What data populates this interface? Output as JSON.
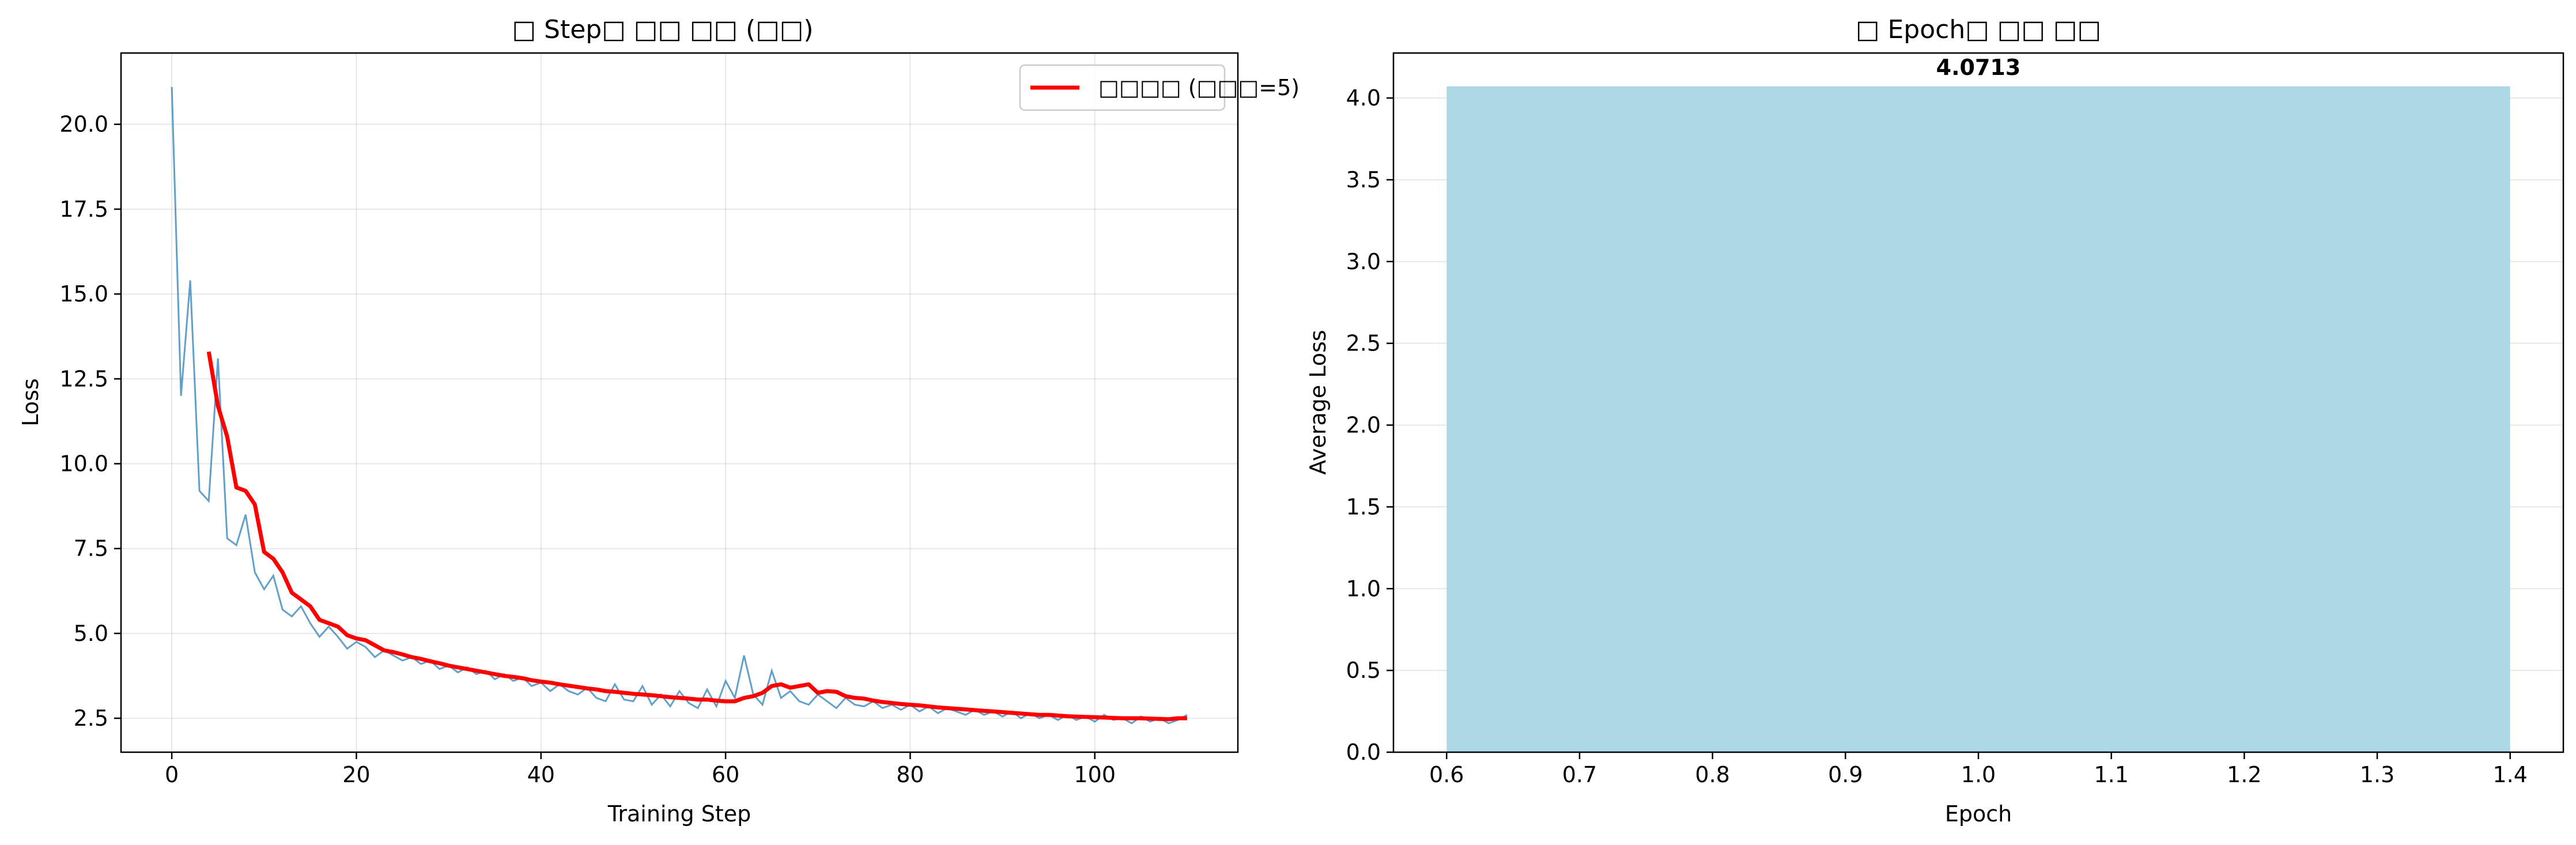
{
  "colors": {
    "raw_line": "#1f77b4",
    "moving_avg": "#ff0000",
    "bar_fill": "#add8e6",
    "grid": "#b0b0b0"
  },
  "chart_data": [
    {
      "type": "line",
      "title": "□ Step□ □□ □□ (□□)",
      "xlabel": "Training Step",
      "ylabel": "Loss",
      "xlim": [
        -5.5,
        115.5
      ],
      "ylim": [
        1.5,
        22.1
      ],
      "xticks": [
        0,
        20,
        40,
        60,
        80,
        100
      ],
      "yticks": [
        2.5,
        5.0,
        7.5,
        10.0,
        12.5,
        15.0,
        17.5,
        20.0
      ],
      "grid": true,
      "legend_position": "top-right",
      "series": [
        {
          "name": "",
          "x_start": 0,
          "x_step": 1,
          "values": [
            21.1,
            12.0,
            15.4,
            9.2,
            8.9,
            13.1,
            7.8,
            7.6,
            8.5,
            6.8,
            6.3,
            6.7,
            5.7,
            5.5,
            5.8,
            5.3,
            4.9,
            5.2,
            4.9,
            4.55,
            4.75,
            4.6,
            4.3,
            4.5,
            4.35,
            4.2,
            4.3,
            4.1,
            4.2,
            3.95,
            4.05,
            3.85,
            4.0,
            3.8,
            3.9,
            3.65,
            3.8,
            3.6,
            3.7,
            3.45,
            3.55,
            3.3,
            3.5,
            3.3,
            3.2,
            3.4,
            3.1,
            3.0,
            3.5,
            3.05,
            3.0,
            3.45,
            2.9,
            3.2,
            2.85,
            3.3,
            2.95,
            2.8,
            3.35,
            2.85,
            3.6,
            3.1,
            4.35,
            3.2,
            2.9,
            3.9,
            3.1,
            3.3,
            3.0,
            2.9,
            3.2,
            3.0,
            2.8,
            3.1,
            2.9,
            2.85,
            3.0,
            2.8,
            2.9,
            2.75,
            2.9,
            2.7,
            2.85,
            2.65,
            2.8,
            2.7,
            2.6,
            2.75,
            2.6,
            2.7,
            2.55,
            2.7,
            2.5,
            2.65,
            2.5,
            2.6,
            2.45,
            2.6,
            2.45,
            2.55,
            2.4,
            2.6,
            2.45,
            2.5,
            2.35,
            2.55,
            2.4,
            2.5,
            2.35,
            2.45,
            2.6
          ]
        },
        {
          "name": "□□□□ (□□□=5)",
          "x_start": 4,
          "x_step": 1,
          "values": [
            13.3,
            11.7,
            10.8,
            9.3,
            9.2,
            8.8,
            7.4,
            7.2,
            6.8,
            6.2,
            6.0,
            5.8,
            5.4,
            5.3,
            5.2,
            4.95,
            4.85,
            4.8,
            4.65,
            4.5,
            4.45,
            4.38,
            4.3,
            4.25,
            4.18,
            4.12,
            4.05,
            4.0,
            3.95,
            3.9,
            3.85,
            3.8,
            3.75,
            3.72,
            3.68,
            3.62,
            3.58,
            3.55,
            3.5,
            3.46,
            3.42,
            3.38,
            3.35,
            3.3,
            3.28,
            3.25,
            3.22,
            3.2,
            3.18,
            3.15,
            3.12,
            3.1,
            3.08,
            3.05,
            3.05,
            3.02,
            3.0,
            3.0,
            3.1,
            3.15,
            3.25,
            3.45,
            3.5,
            3.4,
            3.45,
            3.5,
            3.25,
            3.3,
            3.28,
            3.15,
            3.1,
            3.08,
            3.02,
            2.98,
            2.95,
            2.92,
            2.9,
            2.88,
            2.85,
            2.82,
            2.8,
            2.78,
            2.76,
            2.74,
            2.72,
            2.7,
            2.68,
            2.66,
            2.64,
            2.62,
            2.6,
            2.6,
            2.58,
            2.56,
            2.55,
            2.54,
            2.53,
            2.52,
            2.51,
            2.5,
            2.5,
            2.5,
            2.49,
            2.48,
            2.47,
            2.5,
            2.5
          ]
        }
      ]
    },
    {
      "type": "bar",
      "title": "□ Epoch□ □□ □□",
      "xlabel": "Epoch",
      "ylabel": "Average Loss",
      "xlim": [
        0.56,
        1.44
      ],
      "ylim": [
        0,
        4.275
      ],
      "xticks": [
        "0.6",
        "0.7",
        "0.8",
        "0.9",
        "1.0",
        "1.1",
        "1.2",
        "1.3",
        "1.4"
      ],
      "yticks": [
        "0.0",
        "0.5",
        "1.0",
        "1.5",
        "2.0",
        "2.5",
        "3.0",
        "3.5",
        "4.0"
      ],
      "grid": true,
      "bars": [
        {
          "x": 1.0,
          "width": 0.8,
          "value": 4.0713,
          "label": "4.0713"
        }
      ]
    }
  ]
}
